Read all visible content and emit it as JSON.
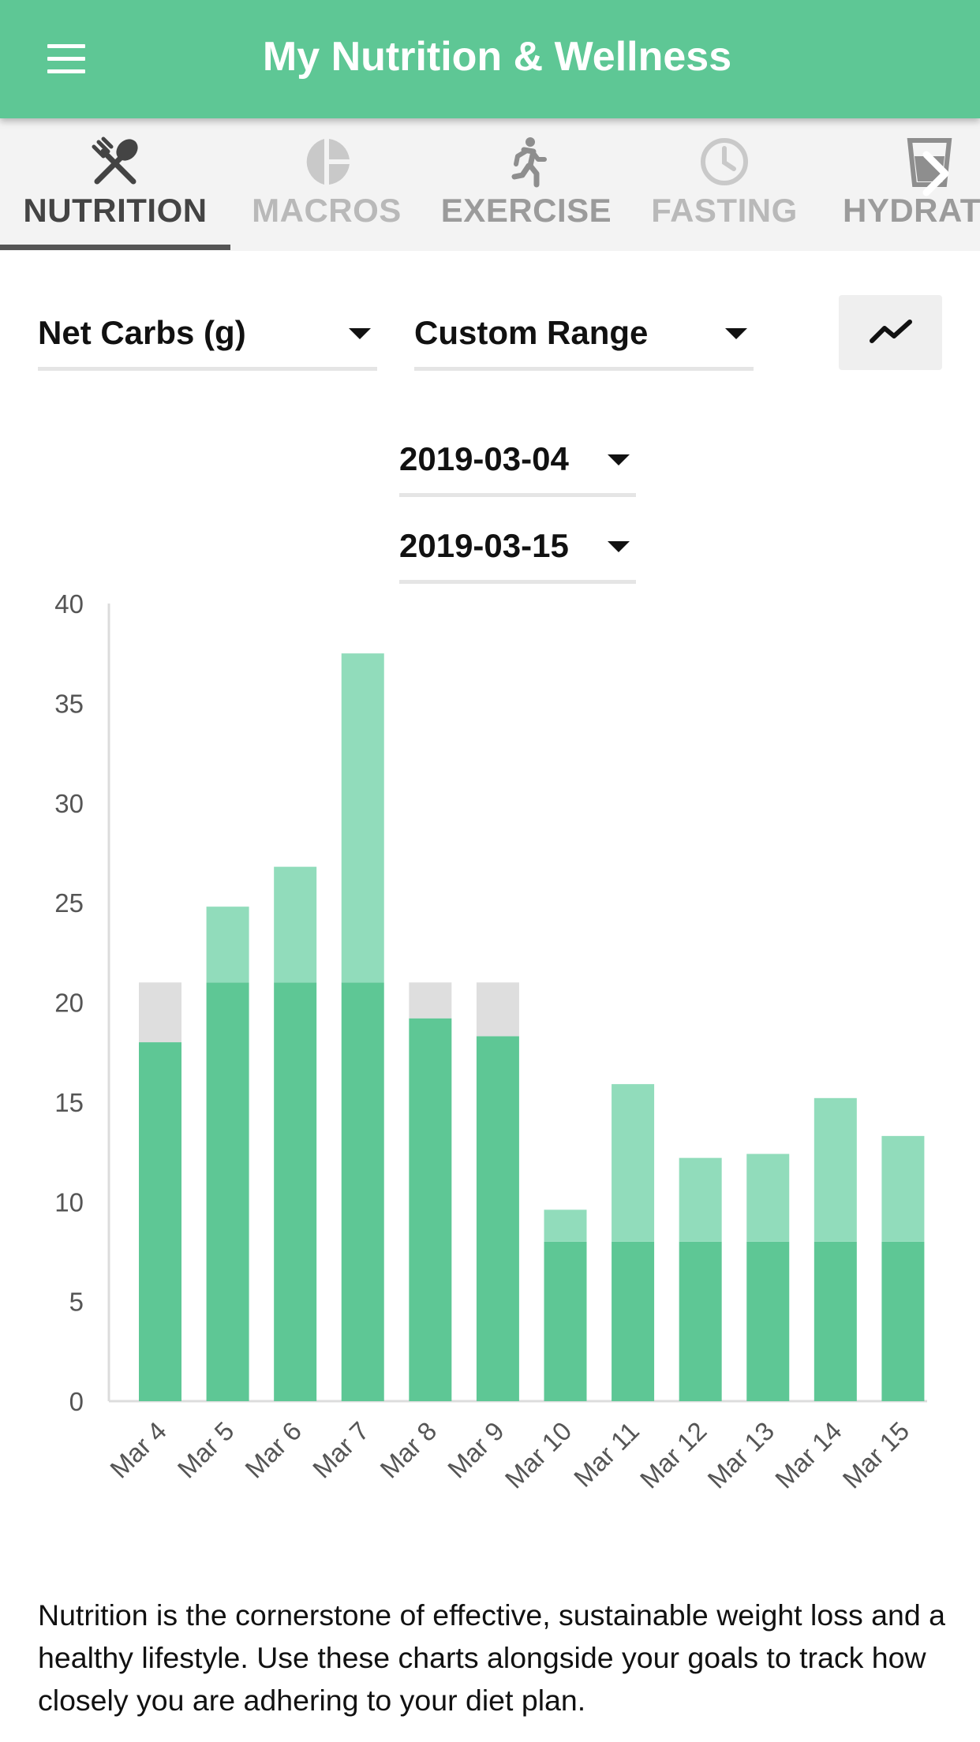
{
  "app": {
    "title": "My Nutrition & Wellness"
  },
  "tabs": [
    {
      "label": "NUTRITION",
      "icon": "fork-spoon-icon",
      "active": true
    },
    {
      "label": "MACROS",
      "icon": "pie-chart-icon",
      "active": false
    },
    {
      "label": "EXERCISE",
      "icon": "running-person-icon",
      "active": false
    },
    {
      "label": "FASTING",
      "icon": "clock-icon",
      "active": false
    },
    {
      "label": "HYDRAT",
      "icon": "water-glass-icon",
      "active": false
    }
  ],
  "controls": {
    "metric_select": "Net Carbs (g)",
    "range_select": "Custom Range",
    "start_date": "2019-03-04",
    "end_date": "2019-03-15",
    "chart_type_icon": "line-chart-icon"
  },
  "colors": {
    "primary": "#5ec795",
    "over_goal": "#91dcbb",
    "under_goal": "#dedede",
    "axis": "#dcdcdc",
    "tick_text": "#555555"
  },
  "chart_data": {
    "type": "bar",
    "stacked": true,
    "categories": [
      "Mar 4",
      "Mar 5",
      "Mar 6",
      "Mar 7",
      "Mar 8",
      "Mar 9",
      "Mar 10",
      "Mar 11",
      "Mar 12",
      "Mar 13",
      "Mar 14",
      "Mar 15"
    ],
    "series": [
      {
        "values": [
          18,
          21,
          21,
          21,
          19.2,
          18.3,
          8,
          8,
          8,
          8,
          8,
          8
        ],
        "color": "#5ec795"
      },
      {
        "values": [
          0,
          3.8,
          5.8,
          16.5,
          0,
          0,
          1.6,
          7.9,
          4.2,
          4.4,
          7.2,
          5.3
        ],
        "color": "#91dcbb"
      },
      {
        "values": [
          3,
          0,
          0,
          0,
          1.8,
          2.7,
          0,
          0,
          0,
          0,
          0,
          0
        ],
        "color": "#dedede"
      }
    ],
    "yticks": [
      0,
      5,
      10,
      15,
      20,
      25,
      30,
      35,
      40
    ],
    "ylim": [
      0,
      40
    ],
    "xlabel": "",
    "ylabel": "",
    "grid": false,
    "legend": "none"
  },
  "description": "Nutrition is the cornerstone of effective, sustainable weight loss and a healthy lifestyle. Use these charts alongside your goals to track how closely you are adhering to your diet plan."
}
